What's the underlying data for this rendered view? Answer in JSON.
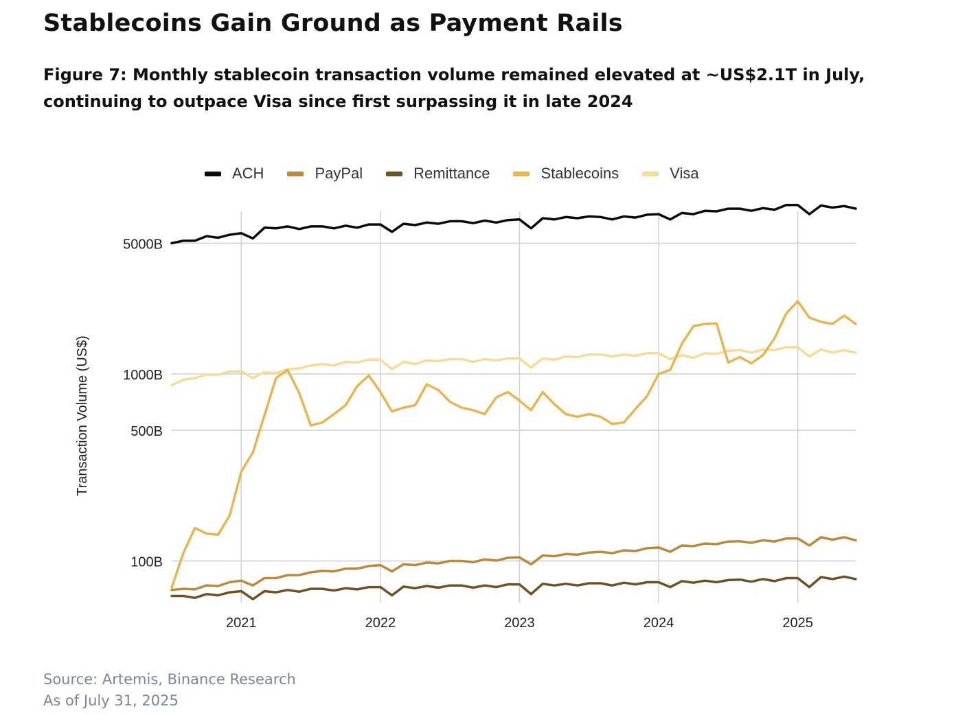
{
  "header": {
    "title": "Stablecoins Gain Ground as Payment Rails",
    "subtitle": "Figure 7: Monthly stablecoin transaction volume remained elevated at ~US$2.1T in July, continuing to outpace Visa since first surpassing it in late 2024"
  },
  "footer": {
    "source": "Source: Artemis, Binance Research",
    "as_of": "As of July 31, 2025"
  },
  "chart_data": {
    "type": "line",
    "ylabel": "Transaction Volume (US$)",
    "yscale": "log",
    "ylim": [
      60,
      7400
    ],
    "xlim": [
      "2020-07",
      "2025-06"
    ],
    "yticks": [
      {
        "value": 100,
        "label": "100B"
      },
      {
        "value": 500,
        "label": "500B"
      },
      {
        "value": 1000,
        "label": "1000B"
      },
      {
        "value": 5000,
        "label": "5000B"
      }
    ],
    "xticks": [
      {
        "value": "2021-01",
        "label": "2021"
      },
      {
        "value": "2022-01",
        "label": "2022"
      },
      {
        "value": "2023-01",
        "label": "2023"
      },
      {
        "value": "2024-01",
        "label": "2024"
      },
      {
        "value": "2025-01",
        "label": "2025"
      }
    ],
    "grid": true,
    "legend_position": "top",
    "x": [
      "2020-07",
      "2020-08",
      "2020-09",
      "2020-10",
      "2020-11",
      "2020-12",
      "2021-01",
      "2021-02",
      "2021-03",
      "2021-04",
      "2021-05",
      "2021-06",
      "2021-07",
      "2021-08",
      "2021-09",
      "2021-10",
      "2021-11",
      "2021-12",
      "2022-01",
      "2022-02",
      "2022-03",
      "2022-04",
      "2022-05",
      "2022-06",
      "2022-07",
      "2022-08",
      "2022-09",
      "2022-10",
      "2022-11",
      "2022-12",
      "2023-01",
      "2023-02",
      "2023-03",
      "2023-04",
      "2023-05",
      "2023-06",
      "2023-07",
      "2023-08",
      "2023-09",
      "2023-10",
      "2023-11",
      "2023-12",
      "2024-01",
      "2024-02",
      "2024-03",
      "2024-04",
      "2024-05",
      "2024-06",
      "2024-07",
      "2024-08",
      "2024-09",
      "2024-10",
      "2024-11",
      "2024-12",
      "2025-01",
      "2025-02",
      "2025-03",
      "2025-04",
      "2025-05",
      "2025-06"
    ],
    "series": [
      {
        "name": "ACH",
        "color": "#0a0a0a",
        "values": [
          5000,
          5150,
          5150,
          5450,
          5350,
          5550,
          5650,
          5300,
          6050,
          6000,
          6150,
          5950,
          6150,
          6150,
          6000,
          6200,
          6050,
          6300,
          6300,
          5750,
          6350,
          6250,
          6450,
          6350,
          6550,
          6550,
          6400,
          6600,
          6450,
          6650,
          6700,
          6000,
          6800,
          6700,
          6900,
          6800,
          6950,
          6900,
          6700,
          6950,
          6850,
          7100,
          7150,
          6700,
          7250,
          7150,
          7450,
          7400,
          7650,
          7650,
          7450,
          7700,
          7550,
          8000,
          8000,
          7150,
          7950,
          7750,
          7900,
          7650
        ]
      },
      {
        "name": "PayPal",
        "color": "#b98a3e",
        "values": [
          70,
          71,
          70.5,
          74,
          73.5,
          77,
          78.5,
          74,
          81,
          81,
          84,
          84,
          87,
          88.5,
          88,
          91,
          91,
          94,
          95,
          88,
          96,
          95,
          98,
          97,
          100,
          100,
          98.5,
          102,
          100.5,
          104,
          104.5,
          96,
          107,
          106,
          109,
          108,
          111,
          112,
          110,
          114,
          113,
          117,
          118,
          112,
          121,
          120,
          124,
          123,
          127,
          127.5,
          125,
          129,
          127,
          132,
          132,
          121,
          134,
          130,
          134,
          129
        ]
      },
      {
        "name": "Remittance",
        "color": "#6e5226",
        "values": [
          65,
          65,
          63.5,
          66.5,
          65.5,
          68,
          69,
          62.5,
          69,
          68,
          70,
          68.5,
          71,
          71,
          69.5,
          71.5,
          70.5,
          72.5,
          72.5,
          65.5,
          73,
          71.5,
          73.5,
          72,
          74,
          74,
          72,
          74,
          72.5,
          75,
          75,
          66.5,
          75.5,
          74,
          75.5,
          74,
          76,
          76,
          74,
          76.5,
          75,
          77,
          77,
          72.5,
          78,
          76.5,
          78.5,
          77,
          79,
          79.5,
          77.5,
          80,
          78,
          81,
          81,
          72.5,
          82,
          80,
          82.5,
          80
        ]
      },
      {
        "name": "Stablecoins",
        "color": "#e8b64e",
        "values": [
          72,
          110,
          150,
          140,
          138,
          175,
          300,
          380,
          600,
          950,
          1050,
          790,
          530,
          550,
          610,
          680,
          860,
          980,
          800,
          630,
          660,
          680,
          880,
          820,
          710,
          660,
          640,
          610,
          750,
          800,
          720,
          640,
          800,
          690,
          610,
          590,
          610,
          590,
          540,
          550,
          650,
          760,
          1000,
          1050,
          1450,
          1800,
          1850,
          1860,
          1150,
          1230,
          1140,
          1260,
          1550,
          2100,
          2450,
          2000,
          1900,
          1850,
          2050,
          1850
        ]
      },
      {
        "name": "Visa",
        "color": "#f5dc97",
        "values": [
          870,
          930,
          950,
          990,
          990,
          1030,
          1030,
          950,
          1020,
          1010,
          1060,
          1070,
          1110,
          1130,
          1110,
          1160,
          1150,
          1190,
          1190,
          1060,
          1160,
          1130,
          1180,
          1170,
          1200,
          1200,
          1160,
          1200,
          1180,
          1210,
          1210,
          1080,
          1210,
          1190,
          1240,
          1230,
          1270,
          1270,
          1240,
          1270,
          1250,
          1290,
          1290,
          1200,
          1260,
          1220,
          1290,
          1280,
          1330,
          1340,
          1300,
          1350,
          1340,
          1390,
          1390,
          1240,
          1350,
          1300,
          1340,
          1300
        ]
      }
    ]
  }
}
